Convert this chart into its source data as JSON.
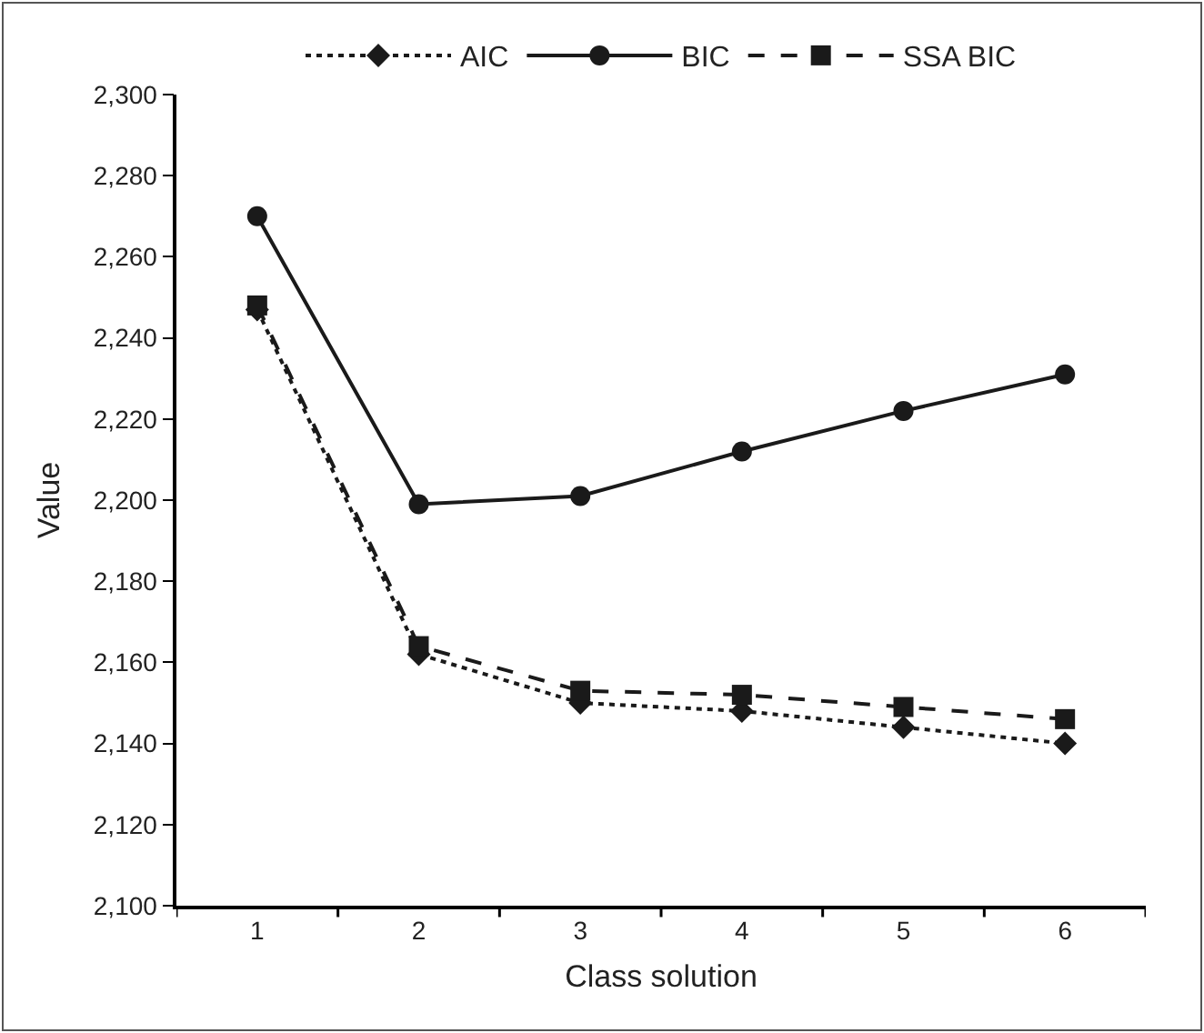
{
  "chart_data": {
    "type": "line",
    "xlabel": "Class solution",
    "ylabel": "Value",
    "categories": [
      "1",
      "2",
      "3",
      "4",
      "5",
      "6"
    ],
    "series": [
      {
        "name": "AIC",
        "color": "#1a1a1a",
        "marker": "diamond",
        "line_style": "dotted",
        "values": [
          2247,
          2162,
          2150,
          2148,
          2144,
          2140
        ]
      },
      {
        "name": "BIC",
        "color": "#1a1a1a",
        "marker": "circle",
        "line_style": "solid",
        "values": [
          2270,
          2199,
          2201,
          2212,
          2222,
          2231
        ]
      },
      {
        "name": "SSA BIC",
        "color": "#1a1a1a",
        "marker": "square",
        "line_style": "dashed",
        "values": [
          2248,
          2164,
          2153,
          2152,
          2149,
          2146
        ]
      }
    ],
    "ylim": [
      2100,
      2300
    ],
    "yticks": [
      {
        "value": 2100,
        "label": "2,100"
      },
      {
        "value": 2120,
        "label": "2,120"
      },
      {
        "value": 2140,
        "label": "2,140"
      },
      {
        "value": 2160,
        "label": "2,160"
      },
      {
        "value": 2180,
        "label": "2,180"
      },
      {
        "value": 2200,
        "label": "2,200"
      },
      {
        "value": 2220,
        "label": "2,220"
      },
      {
        "value": 2240,
        "label": "2,240"
      },
      {
        "value": 2260,
        "label": "2,260"
      },
      {
        "value": 2280,
        "label": "2,280"
      },
      {
        "value": 2300,
        "label": "2,300"
      }
    ],
    "grid": false,
    "legend": "top"
  }
}
